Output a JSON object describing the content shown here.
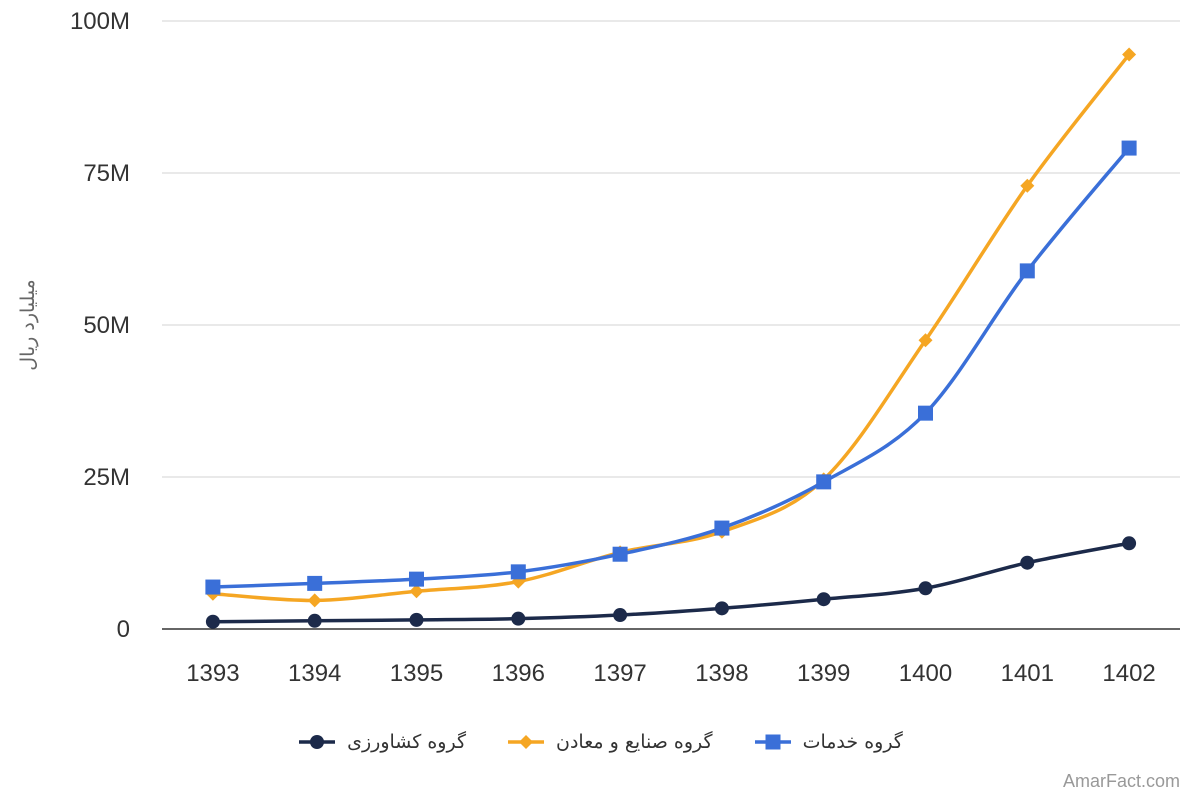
{
  "chart_data": {
    "type": "line",
    "title": "",
    "xlabel": "",
    "ylabel": "میلیارد ریال",
    "categories": [
      "1393",
      "1394",
      "1395",
      "1396",
      "1397",
      "1398",
      "1399",
      "1400",
      "1401",
      "1402"
    ],
    "ylim": [
      0,
      100000000
    ],
    "yticks": [
      0,
      25000000,
      50000000,
      75000000,
      100000000
    ],
    "ytick_labels": [
      "0",
      "25M",
      "50M",
      "75M",
      "100M"
    ],
    "grid": true,
    "legend_position": "bottom",
    "series": [
      {
        "name": "گروه کشاورزی",
        "color": "#1c2a4a",
        "marker": "circle",
        "values": [
          1200000,
          1350000,
          1500000,
          1700000,
          2300000,
          3400000,
          4900000,
          6700000,
          10900000,
          14100000
        ]
      },
      {
        "name": "گروه صنایع و معادن",
        "color": "#f5a623",
        "marker": "diamond",
        "values": [
          5800000,
          4700000,
          6200000,
          7800000,
          12600000,
          16000000,
          24600000,
          47500000,
          72900000,
          94500000
        ]
      },
      {
        "name": "گروه خدمات",
        "color": "#3a6fd8",
        "marker": "square",
        "values": [
          6900000,
          7500000,
          8200000,
          9400000,
          12300000,
          16600000,
          24200000,
          35500000,
          58900000,
          79100000
        ]
      }
    ]
  },
  "watermark": "AmarFact.com"
}
